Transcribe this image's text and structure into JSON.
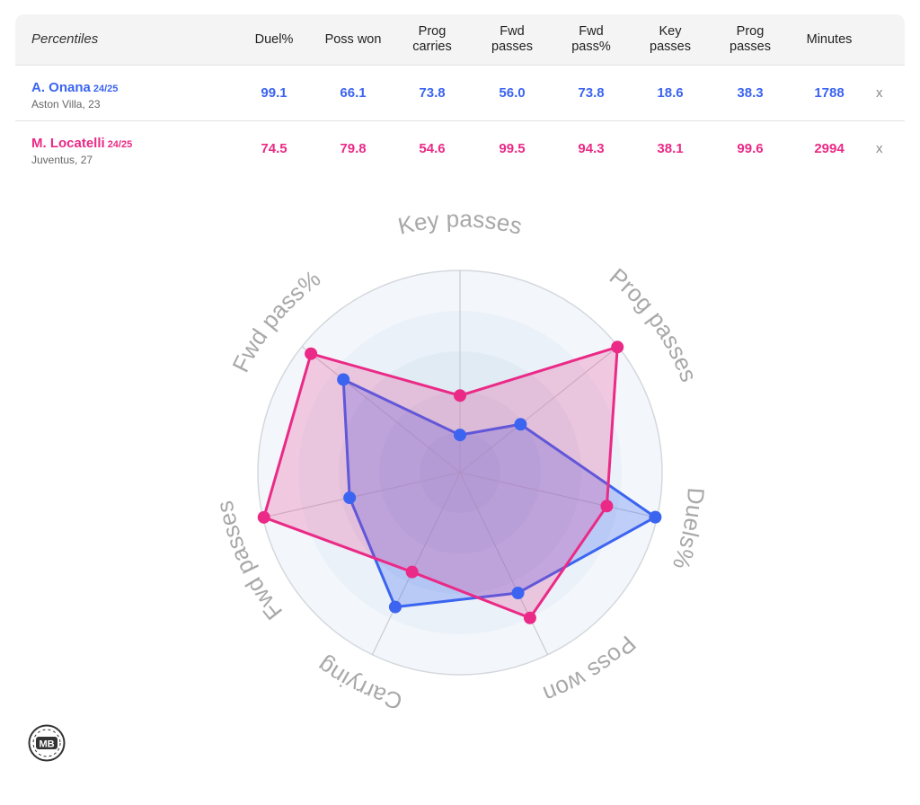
{
  "table": {
    "header_label": "Percentiles",
    "columns": [
      "Duel%",
      "Poss won",
      "Prog\ncarries",
      "Fwd\npasses",
      "Fwd\npass%",
      "Key\npasses",
      "Prog\npasses",
      "Minutes"
    ],
    "remove_label": "x",
    "players": [
      {
        "name": "A. Onana",
        "season": "24/25",
        "club": "Aston Villa, 23",
        "values": [
          "99.1",
          "66.1",
          "73.8",
          "56.0",
          "73.8",
          "18.6",
          "38.3",
          "1788"
        ]
      },
      {
        "name": "M. Locatelli",
        "season": "24/25",
        "club": "Juventus, 27",
        "values": [
          "74.5",
          "79.8",
          "54.6",
          "99.5",
          "94.3",
          "38.1",
          "99.6",
          "2994"
        ]
      }
    ]
  },
  "chart_data": {
    "type": "radar",
    "axes": [
      "Key passes",
      "Prog passes",
      "Duels%",
      "Poss won",
      "Carrying",
      "Fwd passes",
      "Fwd pass%"
    ],
    "range": [
      0,
      100
    ],
    "series": [
      {
        "name": "A. Onana 24/25",
        "color": "#3b64f0",
        "values": [
          18.6,
          38.3,
          99.1,
          66.1,
          73.8,
          56.0,
          73.8
        ]
      },
      {
        "name": "M. Locatelli 24/25",
        "color": "#ea2a86",
        "values": [
          38.1,
          99.6,
          74.5,
          79.8,
          54.6,
          99.5,
          94.3
        ]
      }
    ]
  },
  "logo": {
    "text": "MB"
  }
}
